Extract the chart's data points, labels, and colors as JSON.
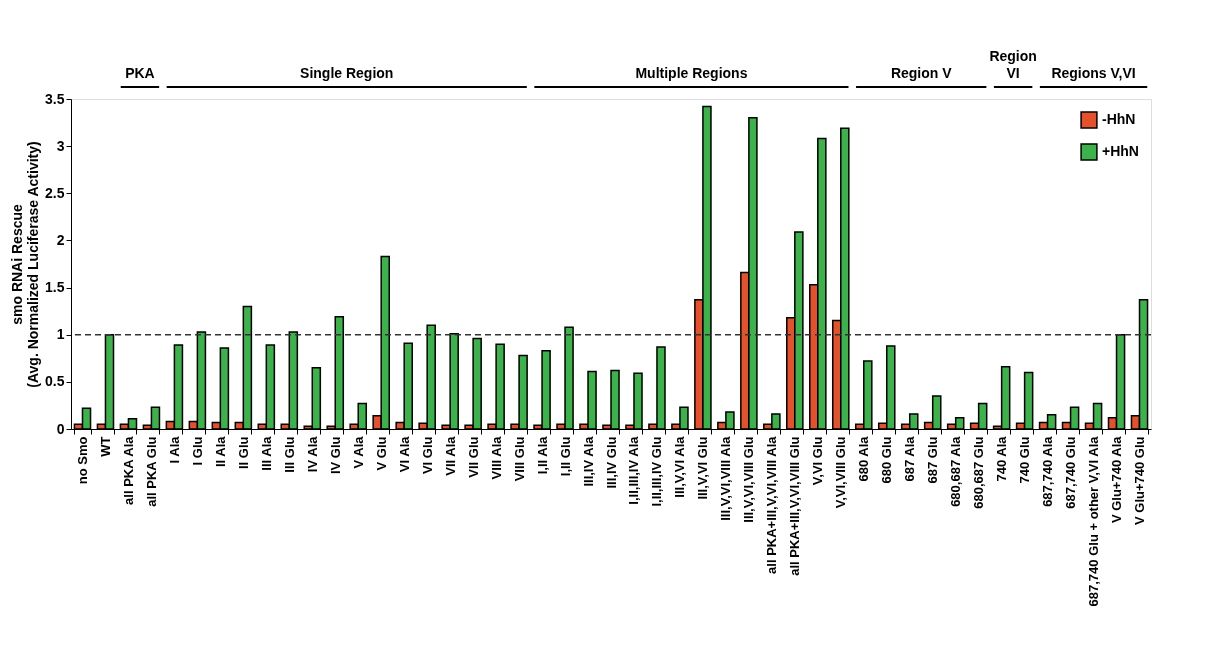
{
  "chart_data": {
    "type": "bar",
    "ylabel": "smo RNAi Rescue (Avg. Normalized Luciferase Activity)",
    "categories": [
      "no Smo",
      "WT",
      "all PKA Ala",
      "all PKA Glu",
      "I Ala",
      "I Glu",
      "II Ala",
      "II Glu",
      "III Ala",
      "III Glu",
      "IV Ala",
      "IV Glu",
      "V Ala",
      "V Glu",
      "VI Ala",
      "VI Glu",
      "VII Ala",
      "VII Glu",
      "VIII Ala",
      "VIII Glu",
      "I,II Ala",
      "I,II Glu",
      "III,IV Ala",
      "III,IV Glu",
      "I,II,III,IV Ala",
      "I,II,III,IV Glu",
      "III,V,VI Ala",
      "III,V,VI Glu",
      "III,V,VI,VIII Ala",
      "III,V,VI,VIII Glu",
      "all PKA+III,V,VI,VIII Ala",
      "all PKA+III,V,VI,VIII Glu",
      "V,VI Glu",
      "V,VI,VIII Glu",
      "680 Ala",
      "680 Glu",
      "687 Ala",
      "687 Glu",
      "680,687 Ala",
      "680,687 Glu",
      "740 Ala",
      "740 Glu",
      "687,740 Ala",
      "687,740 Glu",
      "687,740 Glu + other V,VI Ala",
      "V Glu+740 Ala",
      "V Glu+740 Glu"
    ],
    "series": [
      {
        "name": "-HhN",
        "color": "#e4512a",
        "values": [
          0.05,
          0.05,
          0.05,
          0.04,
          0.08,
          0.08,
          0.07,
          0.07,
          0.05,
          0.05,
          0.03,
          0.03,
          0.05,
          0.14,
          0.07,
          0.06,
          0.04,
          0.04,
          0.05,
          0.05,
          0.04,
          0.05,
          0.05,
          0.04,
          0.04,
          0.05,
          0.05,
          1.37,
          0.07,
          1.66,
          0.05,
          1.18,
          1.53,
          1.15,
          0.05,
          0.06,
          0.05,
          0.07,
          0.05,
          0.06,
          0.03,
          0.06,
          0.07,
          0.07,
          0.06,
          0.12,
          0.14
        ]
      },
      {
        "name": "+HhN",
        "color": "#3cb34a",
        "values": [
          0.22,
          1.0,
          0.11,
          0.23,
          0.89,
          1.03,
          0.86,
          1.3,
          0.89,
          1.03,
          0.65,
          1.19,
          0.27,
          1.83,
          0.91,
          1.1,
          1.01,
          0.96,
          0.9,
          0.78,
          0.83,
          1.08,
          0.61,
          0.62,
          0.59,
          0.87,
          0.23,
          3.42,
          0.18,
          3.3,
          0.16,
          2.09,
          3.08,
          3.19,
          0.72,
          0.88,
          0.16,
          0.35,
          0.12,
          0.27,
          0.66,
          0.6,
          0.15,
          0.23,
          0.27,
          1.0,
          1.37
        ]
      }
    ],
    "ylim": [
      0,
      3.5
    ],
    "yticks": [
      0,
      0.5,
      1,
      1.5,
      2,
      2.5,
      3,
      3.5
    ],
    "ref_lines": [
      {
        "axis": "y",
        "value": 1,
        "line_style": "dashed",
        "color": "#333333"
      }
    ],
    "annotations": [
      "PKA",
      "Single Region",
      "Multiple Regions",
      "Region V",
      "Region VI",
      "Regions V,VI"
    ],
    "legend": "top right",
    "grid": false
  }
}
